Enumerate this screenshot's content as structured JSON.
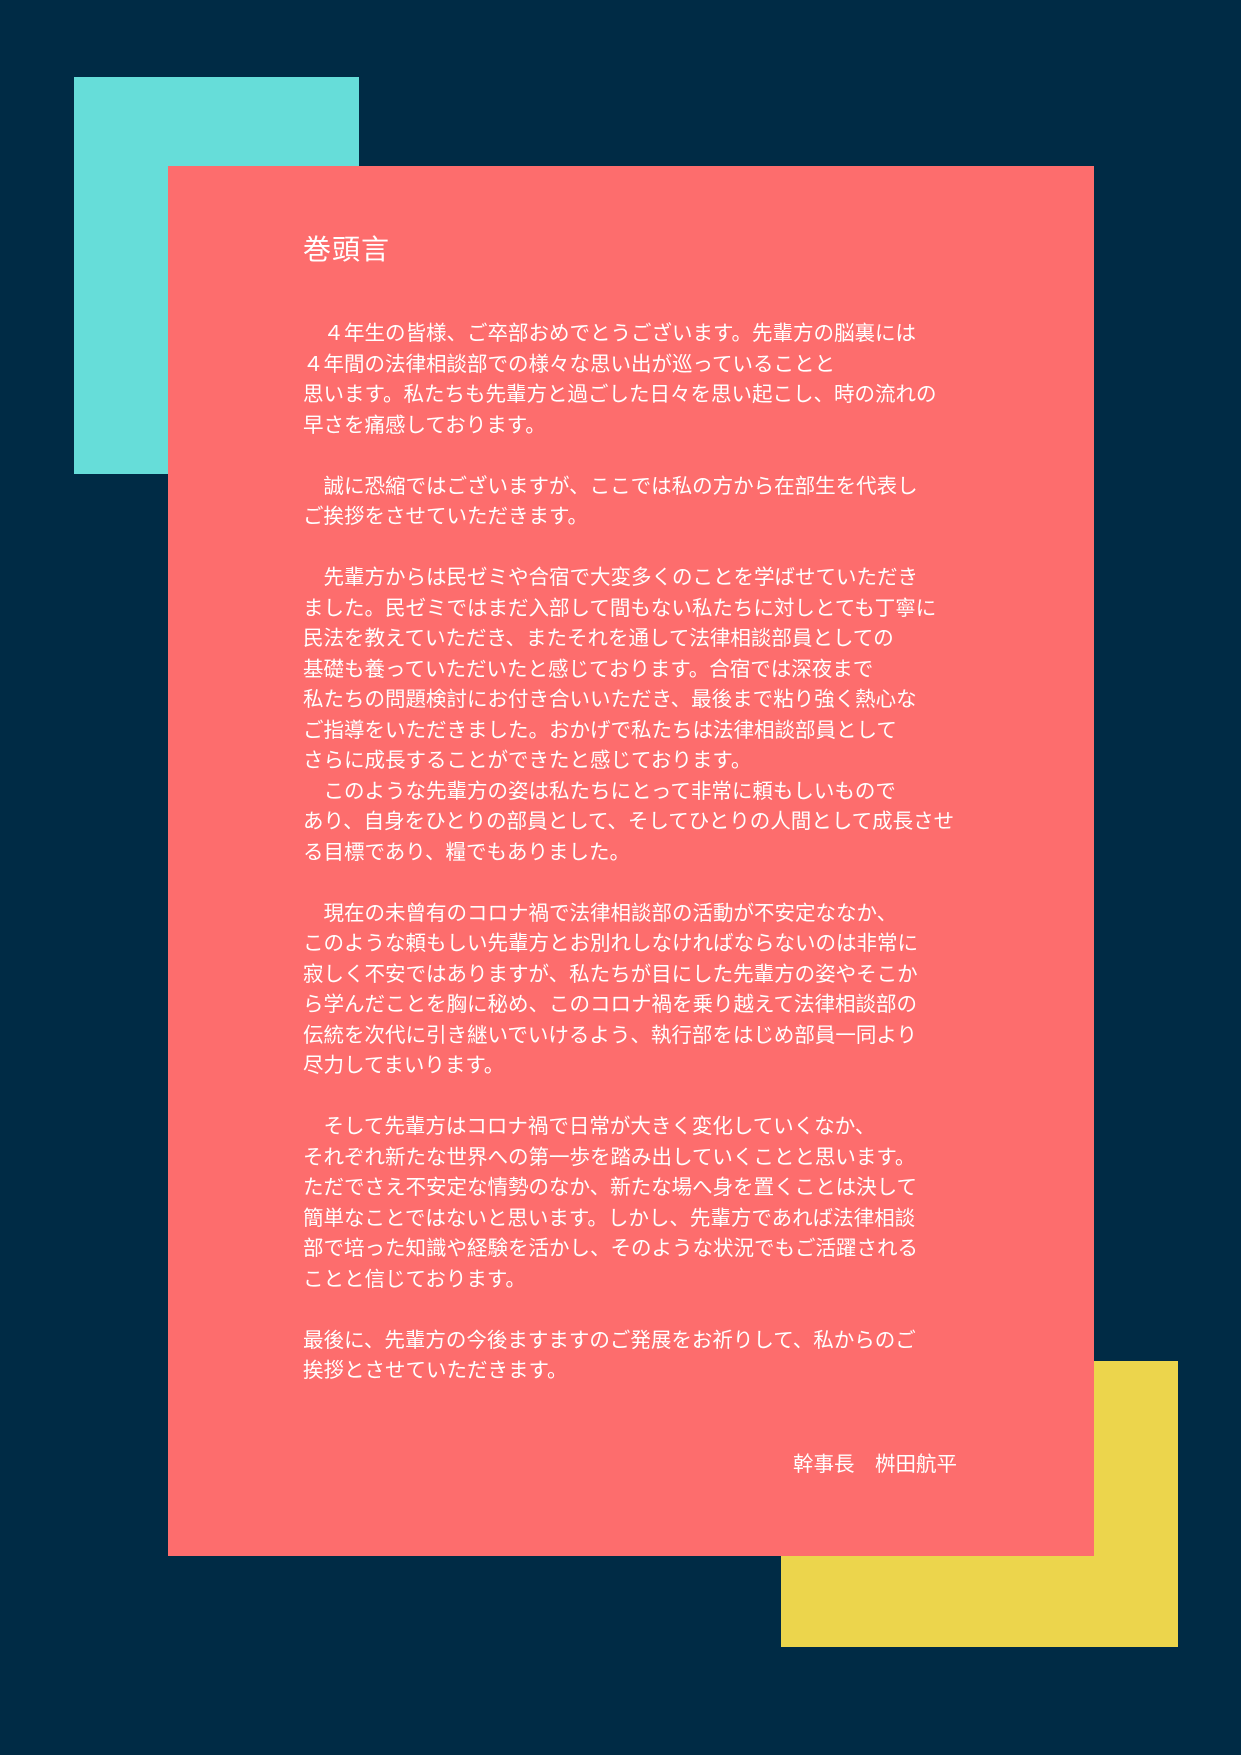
{
  "document": {
    "title": "巻頭言",
    "paragraphs": [
      {
        "lines": [
          "　４年生の皆様、ご卒部おめでとうございます。先輩方の脳裏には",
          "４年間の法律相談部での様々な思い出が巡っていることと",
          "思います。私たちも先輩方と過ごした日々を思い起こし、時の流れの",
          "早さを痛感しております。"
        ]
      },
      {
        "lines": [
          "　誠に恐縮ではございますが、ここでは私の方から在部生を代表し",
          "ご挨拶をさせていただきます。"
        ]
      },
      {
        "lines": [
          "　先輩方からは民ゼミや合宿で大変多くのことを学ばせていただき",
          "ました。民ゼミではまだ入部して間もない私たちに対しとても丁寧に",
          "民法を教えていただき、またそれを通して法律相談部員としての",
          "基礎も養っていただいたと感じております。合宿では深夜まで",
          "私たちの問題検討にお付き合いいただき、最後まで粘り強く熱心な",
          "ご指導をいただきました。おかげで私たちは法律相談部員として",
          "さらに成長することができたと感じております。"
        ]
      },
      {
        "lines": [
          "　このような先輩方の姿は私たちにとって非常に頼もしいもので",
          "あり、自身をひとりの部員として、そしてひとりの人間として成長させ",
          "る目標であり、糧でもありました。"
        ]
      },
      {
        "lines": [
          "　現在の未曾有のコロナ禍で法律相談部の活動が不安定ななか、",
          "このような頼もしい先輩方とお別れしなければならないのは非常に",
          "寂しく不安ではありますが、私たちが目にした先輩方の姿やそこか",
          "ら学んだことを胸に秘め、このコロナ禍を乗り越えて法律相談部の",
          "伝統を次代に引き継いでいけるよう、執行部をはじめ部員一同より",
          "尽力してまいります。"
        ]
      },
      {
        "lines": [
          "　そして先輩方はコロナ禍で日常が大きく変化していくなか、",
          "それぞれ新たな世界への第一歩を踏み出していくことと思います。",
          "ただでさえ不安定な情勢のなか、新たな場へ身を置くことは決して",
          "簡単なことではないと思います。しかし、先輩方であれば法律相談",
          "部で培った知識や経験を活かし、そのような状況でもご活躍される",
          "ことと信じております。"
        ]
      },
      {
        "lines": [
          "最後に、先輩方の今後ますますのご発展をお祈りして、私からのご",
          "挨拶とさせていただきます。"
        ]
      }
    ],
    "signature": "幹事長　桝田航平"
  },
  "colors": {
    "background": "#002b45",
    "paper": "#fd6d6d",
    "accent_teal": "#66ddd9",
    "accent_yellow": "#ecd54c",
    "text": "#ffffff"
  }
}
